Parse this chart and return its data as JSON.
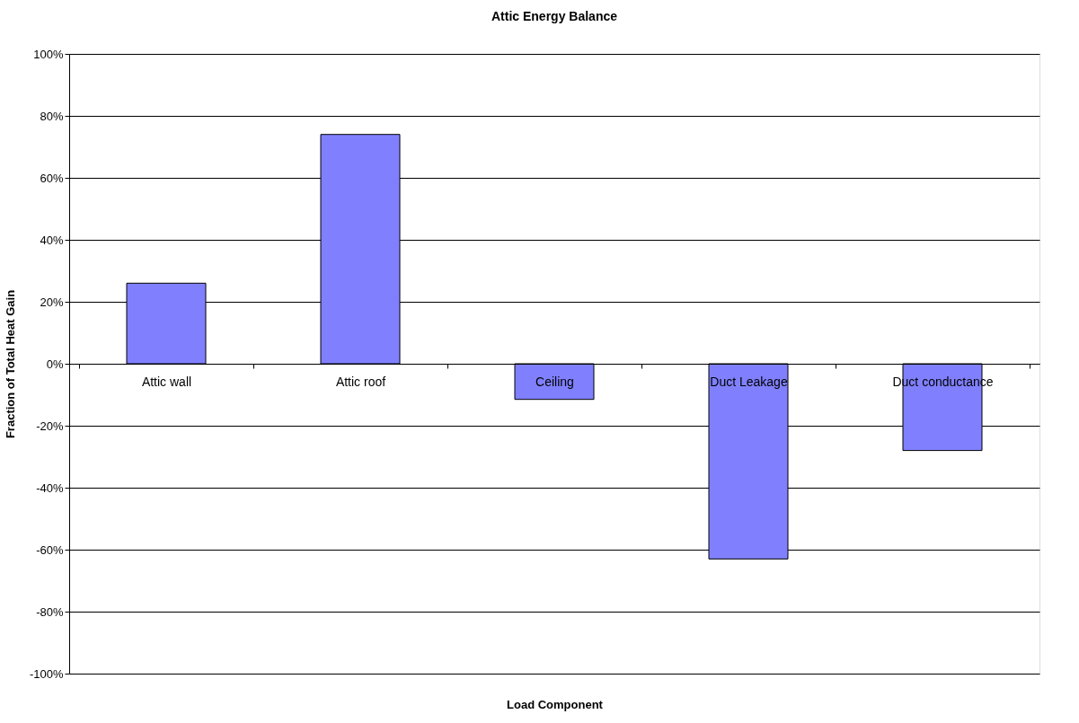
{
  "chart_data": {
    "type": "bar",
    "title": "Attic Energy Balance",
    "xlabel": "Load Component",
    "ylabel": "Fraction of Total Heat Gain",
    "categories": [
      "Attic wall",
      "Attic roof",
      "Ceiling",
      "Duct Leakage",
      "Duct conductance"
    ],
    "values": [
      26,
      74,
      -11.5,
      -63,
      -28
    ],
    "color": "#8080ff",
    "ylim": [
      -100,
      100
    ],
    "yticks": [
      {
        "value": -100,
        "label": "-100%"
      },
      {
        "value": -80,
        "label": "-80%"
      },
      {
        "value": -60,
        "label": "-60%"
      },
      {
        "value": -40,
        "label": "-40%"
      },
      {
        "value": -20,
        "label": "-20%"
      },
      {
        "value": 0,
        "label": "0%"
      },
      {
        "value": 20,
        "label": "20%"
      },
      {
        "value": 40,
        "label": "40%"
      },
      {
        "value": 60,
        "label": "60%"
      },
      {
        "value": 80,
        "label": "80%"
      },
      {
        "value": 100,
        "label": "100%"
      }
    ],
    "grid": "y"
  }
}
